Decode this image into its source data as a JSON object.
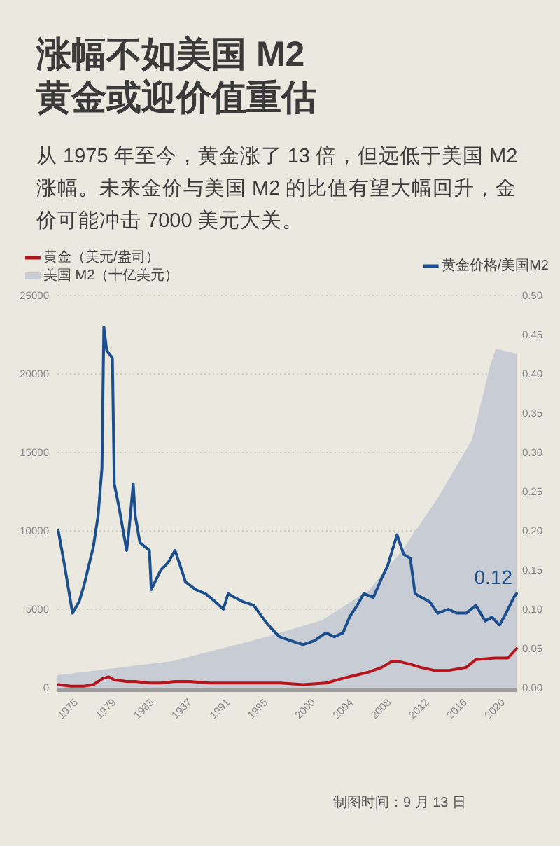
{
  "chart_data": {
    "type": "line",
    "title": "涨幅不如美国 M2\n黄金或迎价值重估",
    "subtitle": "从 1975 年至今，黄金涨了 13 倍，但远低于美国 M2 涨幅。未来金价与美国 M2 的比值有望大幅回升，金价可能冲击 7000 美元大关。",
    "annotations": [
      "制图时间：9 月 13 日"
    ],
    "xlim": [
      1973.9,
      2022.3
    ],
    "xticks": [
      1975,
      1979,
      1983,
      1987,
      1991,
      1995,
      2000,
      2004,
      2008,
      2012,
      2016,
      2020
    ],
    "ylim": [
      0,
      25000
    ],
    "yticks": [
      0,
      5000,
      10000,
      15000,
      20000,
      25000
    ],
    "y2lim": [
      0,
      0.5
    ],
    "y2ticks": [
      {
        "value": 0,
        "label": "0.00"
      },
      {
        "value": 0.05,
        "label": "0.05"
      },
      {
        "value": 0.1,
        "label": "0.10"
      },
      {
        "value": 0.15,
        "label": "0.15"
      },
      {
        "value": 0.2,
        "label": "0.20"
      },
      {
        "value": 0.25,
        "label": "0.25"
      },
      {
        "value": 0.3,
        "label": "0.30"
      },
      {
        "value": 0.35,
        "label": "0.35"
      },
      {
        "value": 0.4,
        "label": "0.40"
      },
      {
        "value": 0.45,
        "label": "0.45"
      },
      {
        "value": 0.5,
        "label": "0.50"
      }
    ],
    "grid": "y",
    "legend": "top",
    "series": [
      {
        "name": "黄金（美元/盎司）",
        "type": "line",
        "color": "#b8141c",
        "x": [
          1974.0,
          1975.3,
          1976.7,
          1977.7,
          1978.7,
          1979.3,
          1979.9,
          1981.2,
          1982.1,
          1983.6,
          1984.8,
          1986.3,
          1987.8,
          1990.0,
          1994.9,
          1997.4,
          1999.8,
          2002.2,
          2004.0,
          2006.7,
          2008.1,
          2009.2,
          2009.7,
          2011.1,
          2012.2,
          2013.7,
          2015.1,
          2017.0,
          2018.0,
          2020.0,
          2021.4,
          2022.3
        ],
        "values": [
          200,
          100,
          100,
          200,
          600,
          700,
          500,
          400,
          400,
          300,
          300,
          400,
          400,
          300,
          300,
          300,
          200,
          300,
          600,
          1000,
          1300,
          1700,
          1700,
          1500,
          1300,
          1100,
          1100,
          1300,
          1800,
          1900,
          1900,
          2500
        ]
      },
      {
        "name": "美国 M2（十亿美元）",
        "type": "area",
        "color": "#c8cdd5",
        "x": [
          1973.9,
          1986.0,
          1995.1,
          2001.8,
          2006.7,
          2010.3,
          2014.0,
          2017.6,
          2019.5,
          2020.1,
          2022.3
        ],
        "values": [
          800,
          1700,
          3100,
          4300,
          6200,
          8800,
          12100,
          15800,
          20500,
          21600,
          21300
        ]
      },
      {
        "name": "黄金价格/美国M2",
        "type": "line",
        "color": "#1b4f8f",
        "axis": "y2",
        "x": [
          1974.0,
          1974.6,
          1975.5,
          1976.2,
          1976.7,
          1977.7,
          1978.2,
          1978.6,
          1978.8,
          1979.1,
          1979.7,
          1979.9,
          1980.4,
          1981.2,
          1981.4,
          1981.9,
          1982.1,
          1982.6,
          1983.6,
          1983.8,
          1984.4,
          1984.8,
          1985.6,
          1986.3,
          1987.0,
          1987.4,
          1988.5,
          1989.5,
          1990.5,
          1991.4,
          1991.9,
          1992.6,
          1993.4,
          1994.6,
          1995.8,
          1996.5,
          1997.3,
          1998.5,
          1999.8,
          2001.0,
          2002.2,
          2003.1,
          2004.0,
          2004.7,
          2005.5,
          2006.2,
          2007.2,
          2008.1,
          2008.7,
          2009.2,
          2009.7,
          2010.4,
          2011.1,
          2011.6,
          2012.3,
          2013.1,
          2014.0,
          2015.1,
          2016.0,
          2017.0,
          2018.0,
          2019.0,
          2019.7,
          2020.5,
          2021.2,
          2022.0,
          2022.3
        ],
        "values": [
          0.2,
          0.16,
          0.095,
          0.11,
          0.13,
          0.18,
          0.22,
          0.28,
          0.46,
          0.43,
          0.42,
          0.26,
          0.23,
          0.175,
          0.195,
          0.26,
          0.22,
          0.185,
          0.175,
          0.125,
          0.14,
          0.15,
          0.16,
          0.175,
          0.15,
          0.135,
          0.125,
          0.12,
          0.11,
          0.1,
          0.12,
          0.115,
          0.11,
          0.105,
          0.085,
          0.075,
          0.065,
          0.06,
          0.055,
          0.06,
          0.07,
          0.065,
          0.07,
          0.09,
          0.105,
          0.12,
          0.115,
          0.14,
          0.155,
          0.175,
          0.195,
          0.17,
          0.165,
          0.12,
          0.115,
          0.11,
          0.095,
          0.1,
          0.095,
          0.095,
          0.105,
          0.085,
          0.09,
          0.08,
          0.095,
          0.115,
          0.12
        ],
        "value_labels": [
          null,
          null,
          null,
          null,
          null,
          null,
          null,
          null,
          null,
          null,
          null,
          null,
          null,
          null,
          null,
          null,
          null,
          null,
          null,
          null,
          null,
          null,
          null,
          null,
          null,
          null,
          null,
          null,
          null,
          null,
          null,
          null,
          null,
          null,
          null,
          null,
          null,
          null,
          null,
          null,
          null,
          null,
          null,
          null,
          null,
          null,
          null,
          null,
          null,
          null,
          null,
          null,
          null,
          null,
          null,
          null,
          null,
          null,
          null,
          null,
          null,
          null,
          null,
          null,
          null,
          null,
          "0.12"
        ]
      }
    ]
  }
}
